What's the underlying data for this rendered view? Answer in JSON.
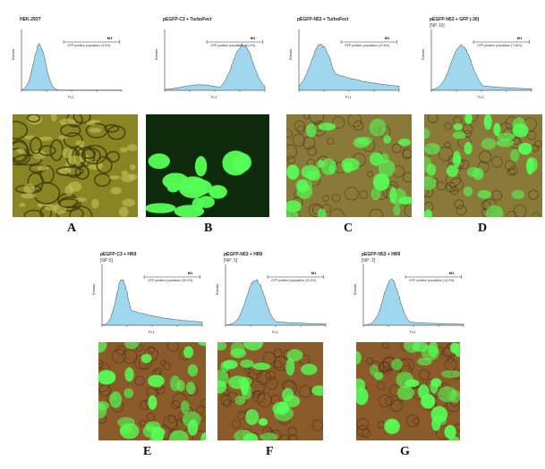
{
  "panels": [
    {
      "id": "A",
      "title": "HEK-293T",
      "subtitle": "",
      "gate_text": "GFP positive population (3.5%)",
      "marker": "M1",
      "xlabel": "FL1",
      "ylabel": "Events",
      "peak": 0.18,
      "spread": 0.06,
      "tail": 0.0,
      "micro": "bright"
    },
    {
      "id": "B",
      "title": "pEGFP-C3 + TurboFect",
      "subtitle": "",
      "gate_text": "GFP positive population (91.0%)",
      "marker": "M1",
      "xlabel": "FL1",
      "ylabel": "Events",
      "peak": 0.78,
      "spread": 0.1,
      "tail": 0.15,
      "micro": "fluor"
    },
    {
      "id": "C",
      "title": "pEGFP-N53 + TurboFect",
      "subtitle": "",
      "gate_text": "GFP positive population (42.8%)",
      "marker": "M1",
      "xlabel": "FL1",
      "ylabel": "Events",
      "peak": 0.22,
      "spread": 0.1,
      "tail": 0.5,
      "micro": "merge"
    },
    {
      "id": "D",
      "title": "pEGFP-N53 + GFP (-30)",
      "subtitle": "[NP:10]",
      "gate_text": "GFP positive population (7.56%)",
      "marker": "M1",
      "xlabel": "FL1",
      "ylabel": "Events",
      "peak": 0.3,
      "spread": 0.1,
      "tail": 0.15,
      "micro": "merge"
    },
    {
      "id": "E",
      "title": "pEGFP-C3 + HR9",
      "subtitle": "[NP:5]",
      "gate_text": "GFP positive population (35.4%)",
      "marker": "M1",
      "xlabel": "FL1",
      "ylabel": "Events",
      "peak": 0.2,
      "spread": 0.06,
      "tail": 0.4,
      "micro": "red"
    },
    {
      "id": "F",
      "title": "pEGFP-N53 + HR9",
      "subtitle": "[NP: 5]",
      "gate_text": "GFP positive population (31.5%)",
      "marker": "M1",
      "xlabel": "FL1",
      "ylabel": "Events",
      "peak": 0.3,
      "spread": 0.09,
      "tail": 0.12,
      "micro": "red"
    },
    {
      "id": "G",
      "title": "pEGFP-N53 + HR9",
      "subtitle": "[NP: 2]",
      "gate_text": "GFP positive population (14.9%)",
      "marker": "M1",
      "xlabel": "FL1",
      "ylabel": "Events",
      "peak": 0.28,
      "spread": 0.08,
      "tail": 0.1,
      "micro": "red"
    }
  ],
  "colors": {
    "histogram_fill": "#9fd8ee",
    "histogram_line": "#444444",
    "bright_bg": "#8a8524",
    "fluor_bg": "#0d2a0a",
    "merge_bg": "#8a7a3a",
    "red_bg": "#8a5a2a",
    "green_cell": "#55ff55"
  }
}
